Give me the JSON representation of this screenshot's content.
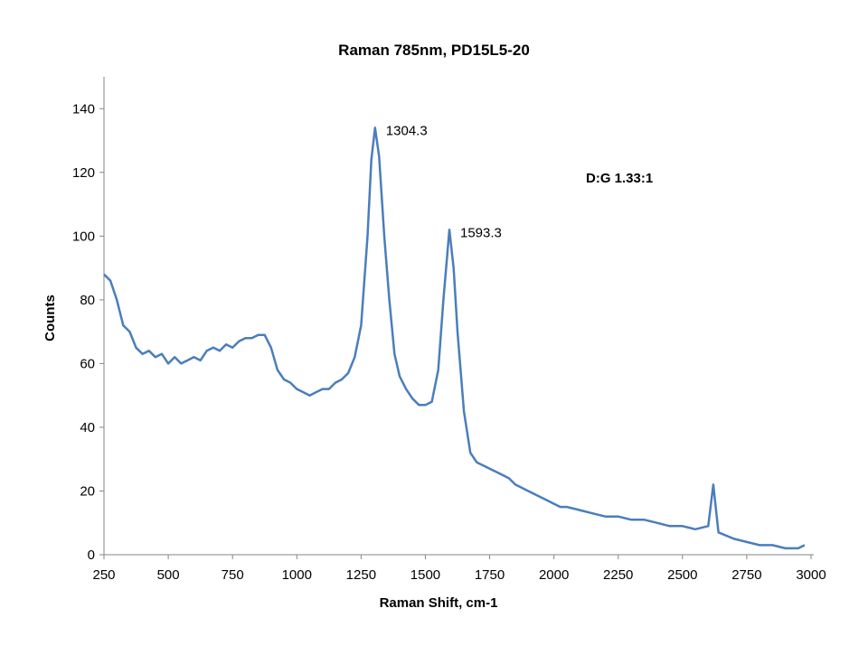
{
  "chart_data": {
    "type": "line",
    "title": "Raman  785nm,  PD15L5-20",
    "xlabel": "Raman Shift, cm-1",
    "ylabel": "Counts",
    "xlim": [
      250,
      3000
    ],
    "ylim": [
      0,
      150
    ],
    "xticks": [
      250,
      500,
      750,
      1000,
      1250,
      1500,
      1750,
      2000,
      2250,
      2500,
      2750,
      3000
    ],
    "yticks": [
      0,
      20,
      40,
      60,
      80,
      100,
      120,
      140
    ],
    "grid": false,
    "line_color": "#4a7ebb",
    "annotations": [
      {
        "text": "1304.3",
        "x": 1304.3,
        "y": 134
      },
      {
        "text": "1593.3",
        "x": 1593.3,
        "y": 102
      },
      {
        "text": "D:G  1.33:1",
        "bold": true
      }
    ],
    "series": [
      {
        "x": [
          250,
          275,
          300,
          325,
          350,
          375,
          400,
          425,
          450,
          475,
          500,
          525,
          550,
          575,
          600,
          625,
          650,
          675,
          700,
          725,
          750,
          775,
          800,
          825,
          850,
          875,
          900,
          925,
          950,
          975,
          1000,
          1025,
          1050,
          1075,
          1100,
          1125,
          1150,
          1175,
          1200,
          1225,
          1250,
          1275,
          1290,
          1304.3,
          1320,
          1340,
          1360,
          1380,
          1400,
          1425,
          1450,
          1475,
          1500,
          1525,
          1550,
          1570,
          1593.3,
          1610,
          1625,
          1650,
          1675,
          1700,
          1725,
          1750,
          1775,
          1800,
          1825,
          1850,
          1875,
          1900,
          1925,
          1950,
          1975,
          2000,
          2025,
          2050,
          2100,
          2150,
          2200,
          2250,
          2300,
          2350,
          2400,
          2450,
          2500,
          2550,
          2600,
          2620,
          2640,
          2700,
          2750,
          2800,
          2850,
          2900,
          2950,
          2975
        ],
        "y": [
          88,
          86,
          80,
          72,
          70,
          65,
          63,
          64,
          62,
          63,
          60,
          62,
          60,
          61,
          62,
          61,
          64,
          65,
          64,
          66,
          65,
          67,
          68,
          68,
          69,
          69,
          65,
          58,
          55,
          54,
          52,
          51,
          50,
          51,
          52,
          52,
          54,
          55,
          57,
          62,
          72,
          100,
          124,
          134,
          125,
          100,
          80,
          63,
          56,
          52,
          49,
          47,
          47,
          48,
          58,
          80,
          102,
          90,
          70,
          45,
          32,
          29,
          28,
          27,
          26,
          25,
          24,
          22,
          21,
          20,
          19,
          18,
          17,
          16,
          15,
          15,
          14,
          13,
          12,
          12,
          11,
          11,
          10,
          9,
          9,
          8,
          9,
          22,
          7,
          5,
          4,
          3,
          3,
          2,
          2,
          3
        ]
      }
    ]
  }
}
